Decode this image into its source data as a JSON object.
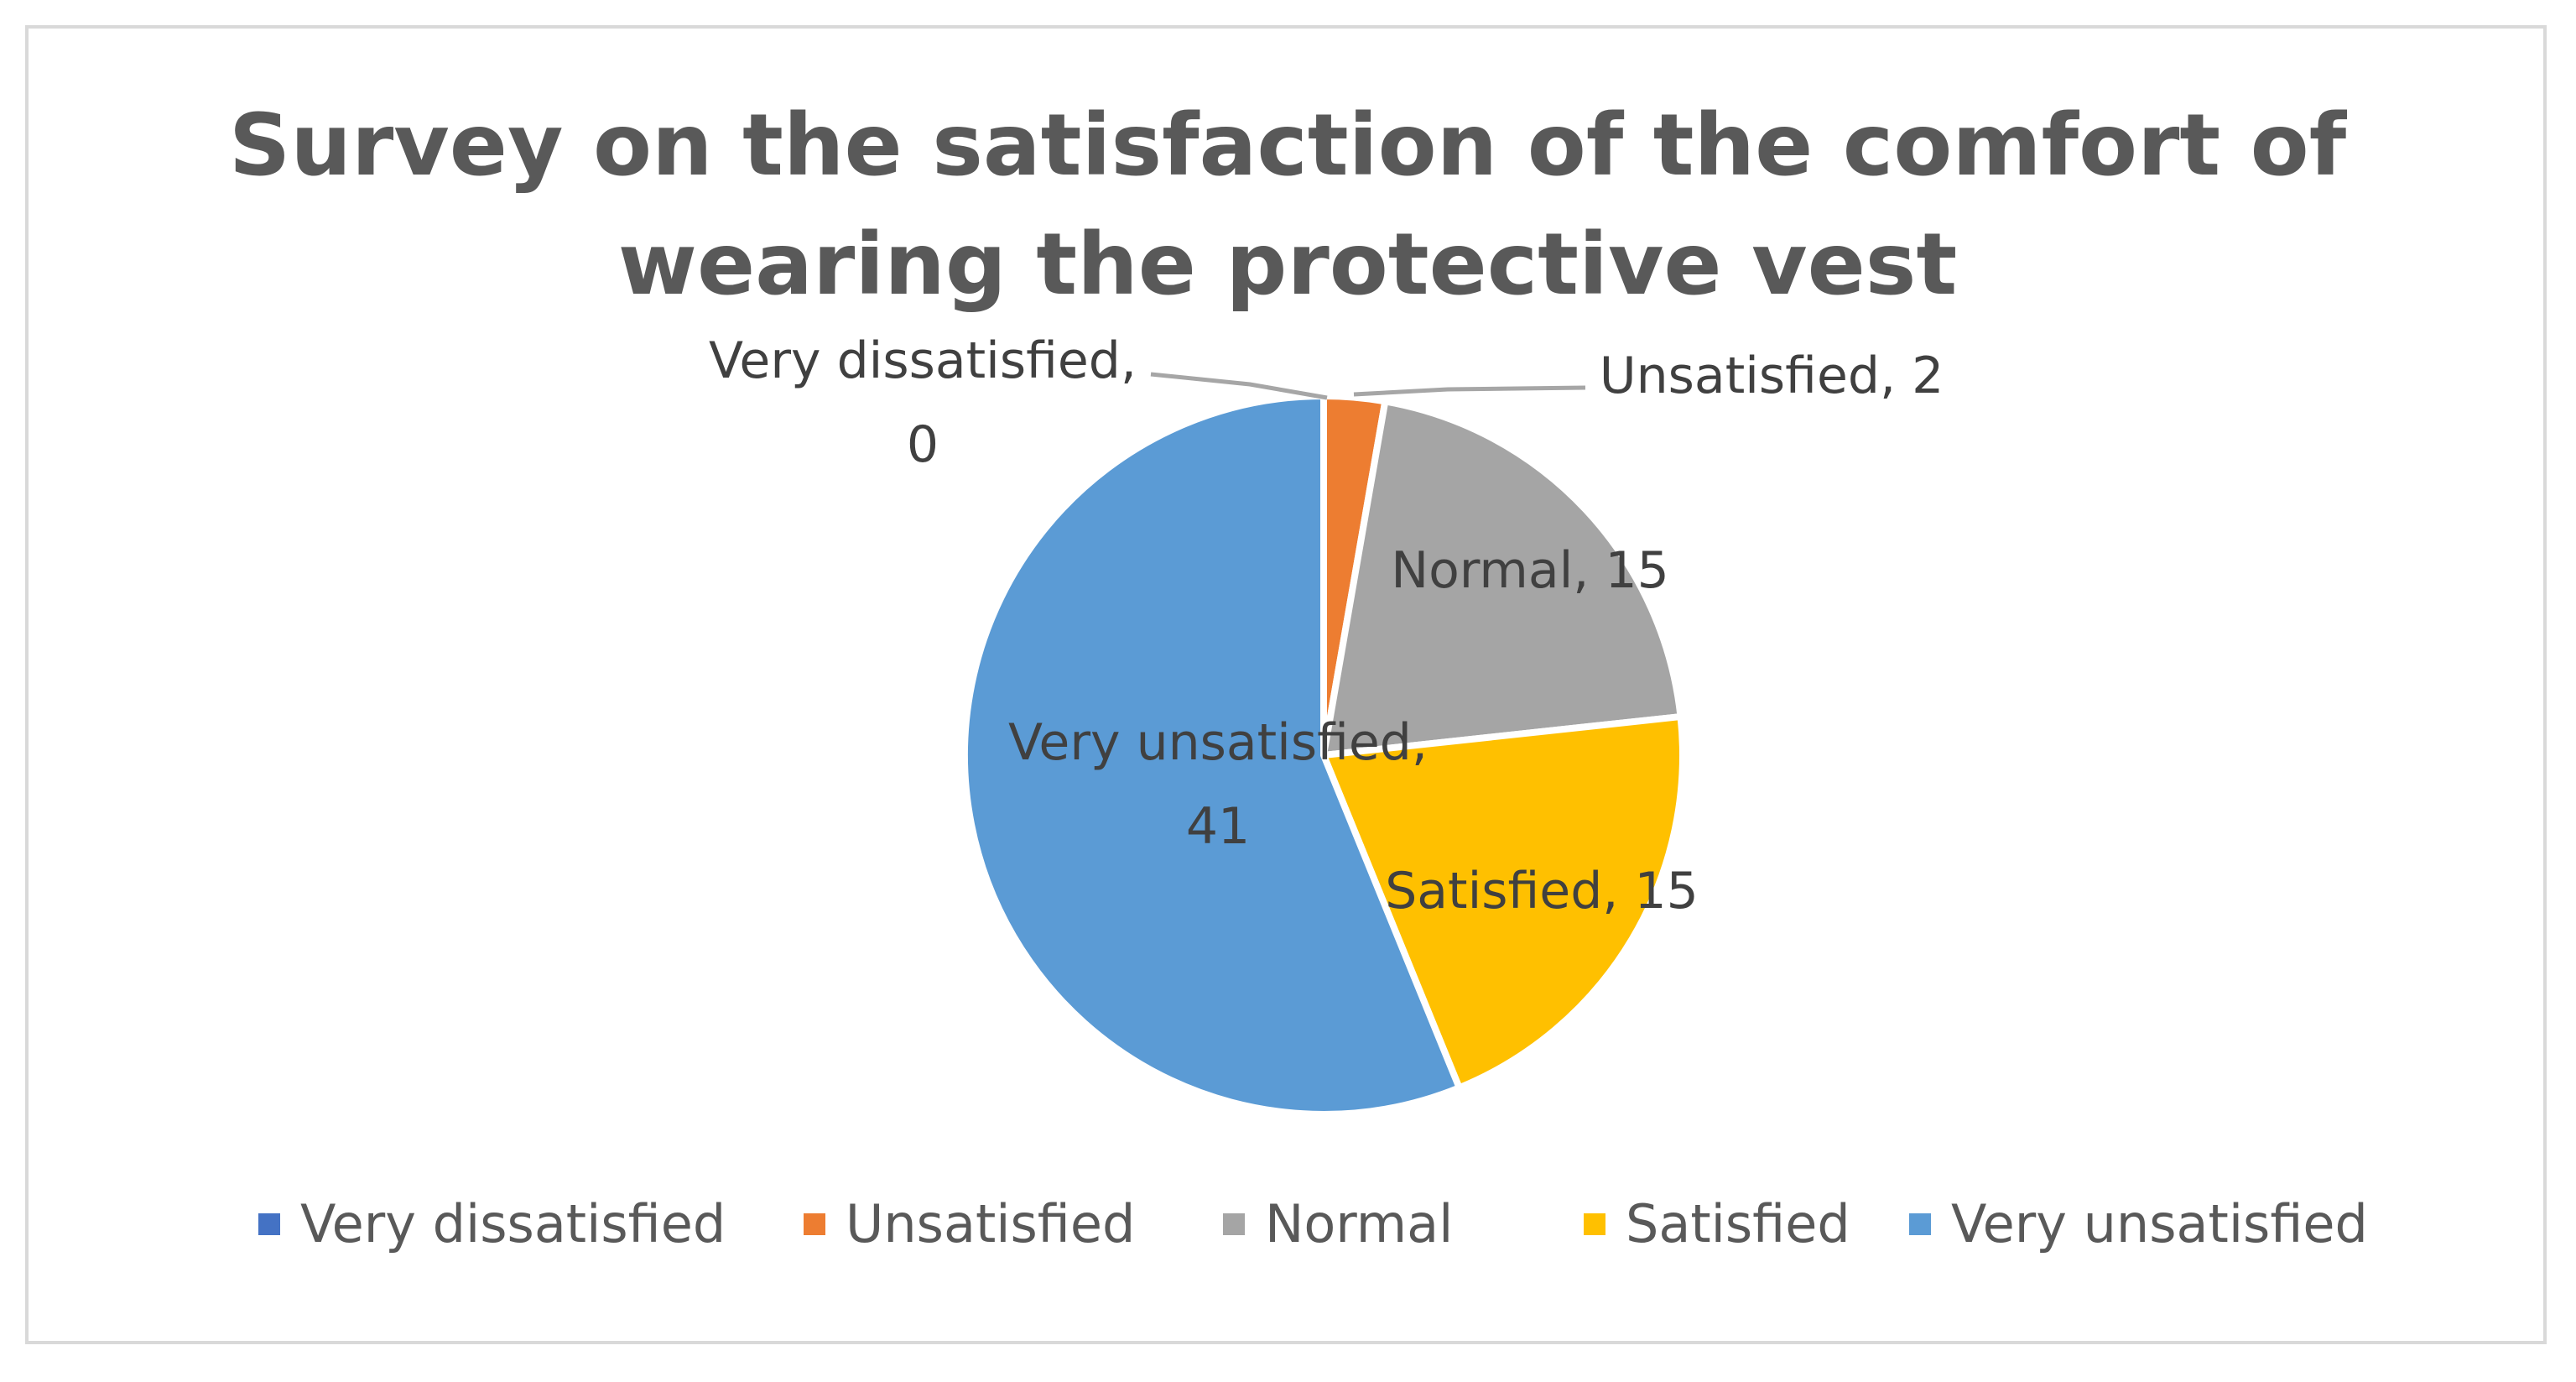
{
  "chart_data": {
    "type": "pie",
    "title_lines": [
      "Survey on the satisfaction of the comfort of",
      "wearing the protective vest"
    ],
    "categories": [
      "Very dissatisfied",
      "Unsatisfied",
      "Normal",
      "Satisfied",
      "Very unsatisfied"
    ],
    "values": [
      0,
      2,
      15,
      15,
      41
    ],
    "colors": [
      "#4472c4",
      "#ed7d31",
      "#a5a5a5",
      "#ffc000",
      "#5b9bd5"
    ],
    "data_labels": [
      [
        "Very dissatisfied,",
        "0"
      ],
      [
        "Unsatisfied, 2"
      ],
      [
        "Normal, 15"
      ],
      [
        "Satisfied, 15"
      ],
      [
        "Very unsatisfied,",
        "41"
      ]
    ],
    "legend_position": "bottom",
    "leader_line_color": "#a6a6a6"
  }
}
